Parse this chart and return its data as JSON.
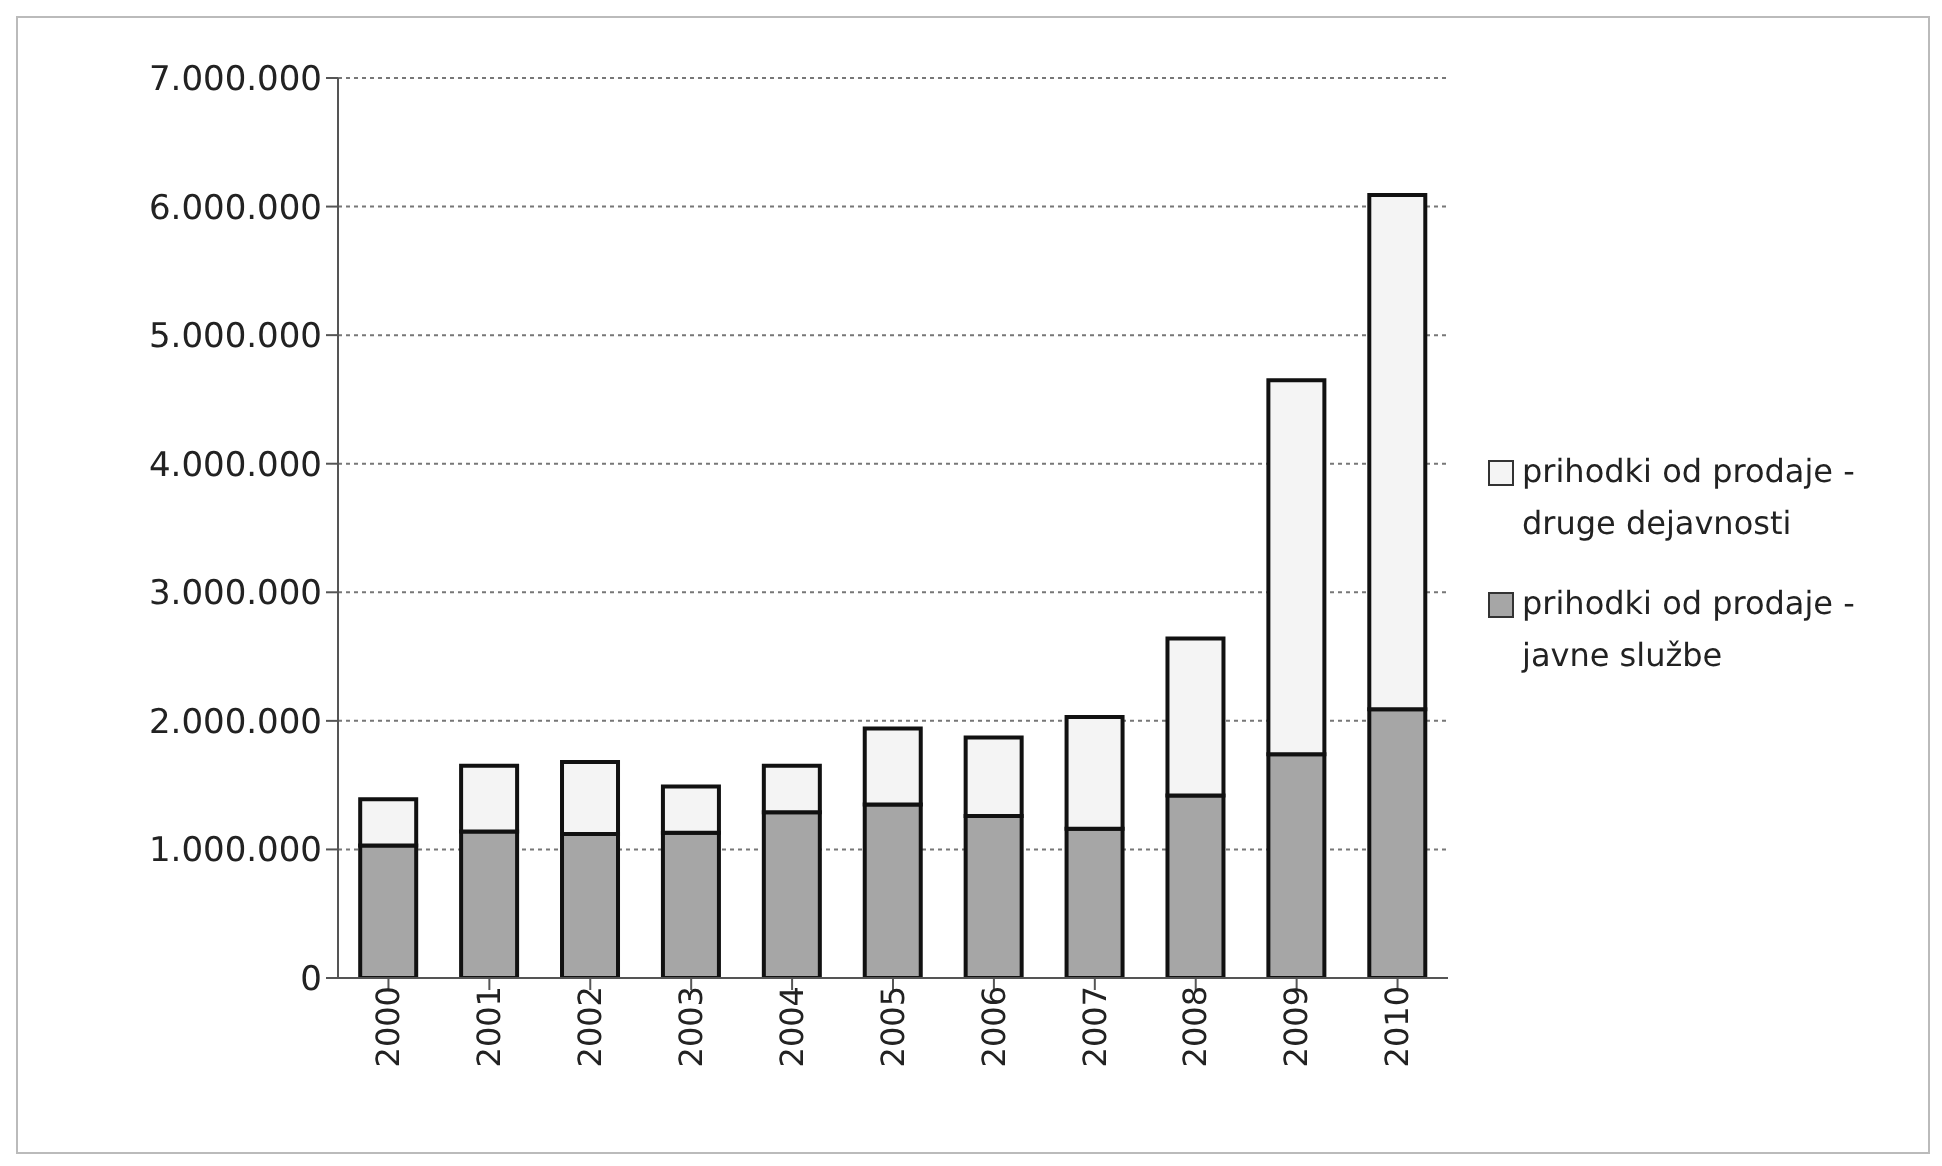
{
  "chart_data": {
    "type": "bar",
    "stacked": true,
    "categories": [
      "2000",
      "2001",
      "2002",
      "2003",
      "2004",
      "2005",
      "2006",
      "2007",
      "2008",
      "2009",
      "2010"
    ],
    "series": [
      {
        "name": "prihodki od prodaje - javne službe",
        "color": "#a6a6a6",
        "values": [
          1030000,
          1140000,
          1120000,
          1130000,
          1290000,
          1350000,
          1260000,
          1160000,
          1420000,
          1740000,
          2090000
        ]
      },
      {
        "name": "prihodki od prodaje - druge dejavnosti",
        "color": "#f4f4f4",
        "values": [
          360000,
          510000,
          560000,
          360000,
          360000,
          590000,
          610000,
          870000,
          1220000,
          2910000,
          4000000
        ]
      }
    ],
    "ylim": [
      0,
      7000000
    ],
    "yticks": [
      {
        "value": 0,
        "label": "0"
      },
      {
        "value": 1000000,
        "label": "1.000.000"
      },
      {
        "value": 2000000,
        "label": "2.000.000"
      },
      {
        "value": 3000000,
        "label": "3.000.000"
      },
      {
        "value": 4000000,
        "label": "4.000.000"
      },
      {
        "value": 5000000,
        "label": "5.000.000"
      },
      {
        "value": 6000000,
        "label": "6.000.000"
      },
      {
        "value": 7000000,
        "label": "7.000.000"
      }
    ],
    "grid": "y",
    "legend": "right"
  }
}
